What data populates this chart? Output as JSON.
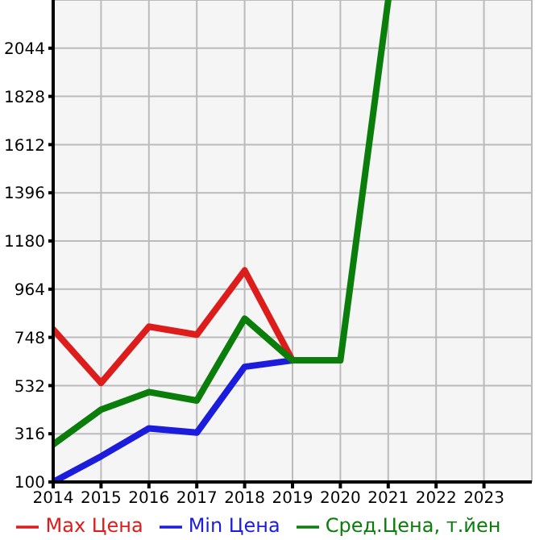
{
  "chart_data": {
    "type": "line",
    "x": [
      2014,
      2015,
      2016,
      2017,
      2018,
      2019,
      2020,
      2021
    ],
    "series": [
      {
        "name": "Max Цена",
        "color": "#dd1c1c",
        "values": [
          784,
          544,
          796,
          760,
          1048,
          645,
          null,
          null
        ]
      },
      {
        "name": "Min Цена",
        "color": "#1c1cdd",
        "values": [
          100,
          215,
          340,
          321,
          616,
          645,
          null,
          null
        ]
      },
      {
        "name": "Сред.Цена, т.йен",
        "color": "#0a7d0a",
        "values": [
          268,
          424,
          503,
          465,
          832,
          645,
          645,
          2260
        ]
      }
    ],
    "xlim": [
      2014,
      2024
    ],
    "xticks": [
      2014,
      2015,
      2016,
      2017,
      2018,
      2019,
      2020,
      2021,
      2022,
      2023
    ],
    "ylim": [
      100,
      2260
    ],
    "yticks": [
      100,
      316,
      532,
      748,
      964,
      1180,
      1396,
      1612,
      1828,
      2044
    ],
    "grid": true,
    "legend": "bottom",
    "marker": "none",
    "line_style": "solid"
  }
}
